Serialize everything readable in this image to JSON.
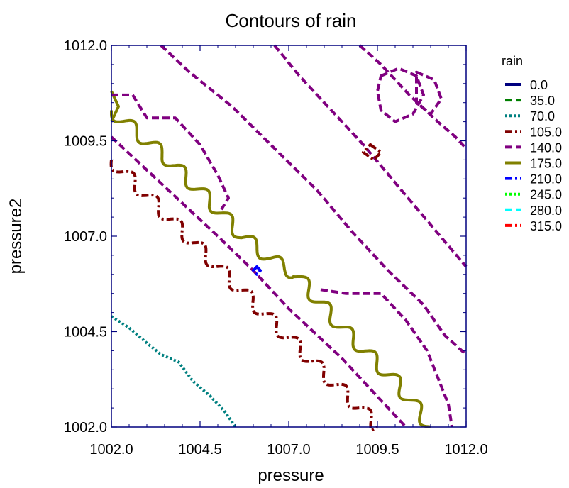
{
  "chart_data": {
    "type": "contour",
    "title": "Contours of rain",
    "xlabel": "pressure",
    "ylabel": "pressure2",
    "xlim": [
      1002.0,
      1012.0
    ],
    "ylim": [
      1002.0,
      1012.0
    ],
    "xticks": [
      "1002.0",
      "1004.5",
      "1007.0",
      "1009.5",
      "1012.0"
    ],
    "yticks": [
      "1002.0",
      "1004.5",
      "1007.0",
      "1009.5",
      "1012.0"
    ],
    "legend_title": "rain",
    "legend_position": "right",
    "levels": [
      {
        "label": "0.0",
        "color": "#00007f",
        "dash": "solid"
      },
      {
        "label": "35.0",
        "color": "#007f00",
        "dash": "dash"
      },
      {
        "label": "70.0",
        "color": "#008080",
        "dash": "dot"
      },
      {
        "label": "105.0",
        "color": "#800000",
        "dash": "dashdot"
      },
      {
        "label": "140.0",
        "color": "#800080",
        "dash": "dash"
      },
      {
        "label": "175.0",
        "color": "#808000",
        "dash": "solid"
      },
      {
        "label": "210.0",
        "color": "#0000ff",
        "dash": "dashdot"
      },
      {
        "label": "245.0",
        "color": "#00ff00",
        "dash": "dot"
      },
      {
        "label": "280.0",
        "color": "#00ffff",
        "dash": "dash"
      },
      {
        "label": "315.0",
        "color": "#ff0000",
        "dash": "dashdot"
      }
    ],
    "contours": [
      {
        "level": "70.0",
        "points": [
          [
            1002.0,
            1004.9
          ],
          [
            1002.5,
            1004.6
          ],
          [
            1003.0,
            1004.2
          ],
          [
            1003.4,
            1003.9
          ],
          [
            1003.9,
            1003.7
          ],
          [
            1004.3,
            1003.2
          ],
          [
            1004.8,
            1002.8
          ],
          [
            1005.2,
            1002.4
          ],
          [
            1005.5,
            1002.0
          ]
        ]
      },
      {
        "level": "105.0",
        "wavy": true,
        "points": [
          [
            1002.0,
            1009.0
          ],
          [
            1003.5,
            1007.6
          ],
          [
            1005.0,
            1006.2
          ],
          [
            1006.5,
            1004.8
          ],
          [
            1008.0,
            1003.4
          ],
          [
            1009.0,
            1002.5
          ],
          [
            1009.5,
            1002.0
          ]
        ]
      },
      {
        "level": "140.0",
        "points": [
          [
            1002.0,
            1009.6
          ],
          [
            1003.5,
            1008.3
          ],
          [
            1005.0,
            1007.0
          ],
          [
            1006.0,
            1006.1
          ],
          [
            1007.0,
            1005.1
          ],
          [
            1008.5,
            1003.8
          ],
          [
            1009.5,
            1002.8
          ],
          [
            1010.3,
            1002.0
          ]
        ]
      },
      {
        "level": "175.0",
        "wavy": true,
        "points": [
          [
            1002.0,
            1010.3
          ],
          [
            1003.5,
            1009.1
          ],
          [
            1004.8,
            1007.9
          ],
          [
            1005.7,
            1007.0
          ],
          [
            1006.5,
            1006.4
          ],
          [
            1007.2,
            1006.0
          ],
          [
            1008.5,
            1004.6
          ],
          [
            1010.0,
            1003.2
          ],
          [
            1010.6,
            1002.5
          ],
          [
            1011.0,
            1002.0
          ]
        ]
      },
      {
        "level": "175.0",
        "points": [
          [
            1002.0,
            1010.8
          ],
          [
            1002.2,
            1010.4
          ],
          [
            1002.0,
            1010.0
          ]
        ]
      },
      {
        "level": "140.0",
        "points": [
          [
            1002.0,
            1010.7
          ],
          [
            1002.6,
            1010.7
          ],
          [
            1003.0,
            1010.1
          ],
          [
            1003.8,
            1010.1
          ],
          [
            1004.5,
            1009.4
          ],
          [
            1005.0,
            1008.6
          ],
          [
            1005.3,
            1008.0
          ],
          [
            1005.1,
            1007.7
          ]
        ]
      },
      {
        "level": "140.0",
        "points": [
          [
            1003.4,
            1012.0
          ],
          [
            1004.2,
            1011.3
          ],
          [
            1005.4,
            1010.4
          ],
          [
            1006.6,
            1009.3
          ],
          [
            1007.8,
            1008.2
          ],
          [
            1008.8,
            1007.1
          ],
          [
            1009.8,
            1006.1
          ],
          [
            1010.8,
            1005.2
          ],
          [
            1011.4,
            1004.4
          ],
          [
            1012.0,
            1003.9
          ]
        ]
      },
      {
        "level": "140.0",
        "points": [
          [
            1007.9,
            1005.6
          ],
          [
            1008.6,
            1005.5
          ],
          [
            1009.6,
            1005.5
          ],
          [
            1010.3,
            1004.8
          ],
          [
            1010.9,
            1004.0
          ],
          [
            1011.2,
            1003.3
          ],
          [
            1011.5,
            1002.6
          ],
          [
            1011.6,
            1002.0
          ]
        ]
      },
      {
        "level": "140.0",
        "points": [
          [
            1006.6,
            1012.0
          ],
          [
            1007.3,
            1011.2
          ],
          [
            1008.2,
            1010.3
          ],
          [
            1009.1,
            1009.4
          ],
          [
            1010.0,
            1008.4
          ],
          [
            1011.0,
            1007.3
          ],
          [
            1012.0,
            1006.2
          ]
        ]
      },
      {
        "level": "140.0",
        "points": [
          [
            1009.0,
            1012.0
          ],
          [
            1009.6,
            1011.5
          ],
          [
            1010.4,
            1010.7
          ],
          [
            1011.2,
            1010.0
          ],
          [
            1011.7,
            1009.6
          ],
          [
            1012.0,
            1009.3
          ]
        ]
      },
      {
        "level": "140.0",
        "closed": true,
        "points": [
          [
            1009.6,
            1011.2
          ],
          [
            1010.1,
            1011.4
          ],
          [
            1010.6,
            1011.2
          ],
          [
            1010.8,
            1010.7
          ],
          [
            1010.5,
            1010.2
          ],
          [
            1010.0,
            1010.0
          ],
          [
            1009.6,
            1010.3
          ],
          [
            1009.5,
            1010.8
          ]
        ]
      },
      {
        "level": "140.0",
        "closed": true,
        "points": [
          [
            1010.6,
            1011.3
          ],
          [
            1011.1,
            1011.1
          ],
          [
            1011.3,
            1010.6
          ],
          [
            1011.0,
            1010.2
          ],
          [
            1010.6,
            1010.5
          ]
        ]
      },
      {
        "level": "105.0",
        "closed": true,
        "points": [
          [
            1009.3,
            1009.4
          ],
          [
            1009.6,
            1009.2
          ],
          [
            1009.4,
            1009.0
          ],
          [
            1009.1,
            1009.2
          ]
        ]
      },
      {
        "level": "210.0",
        "closed": true,
        "points": [
          [
            1006.1,
            1006.2
          ],
          [
            1006.2,
            1006.1
          ],
          [
            1006.1,
            1006.0
          ],
          [
            1006.0,
            1006.1
          ]
        ]
      }
    ]
  }
}
